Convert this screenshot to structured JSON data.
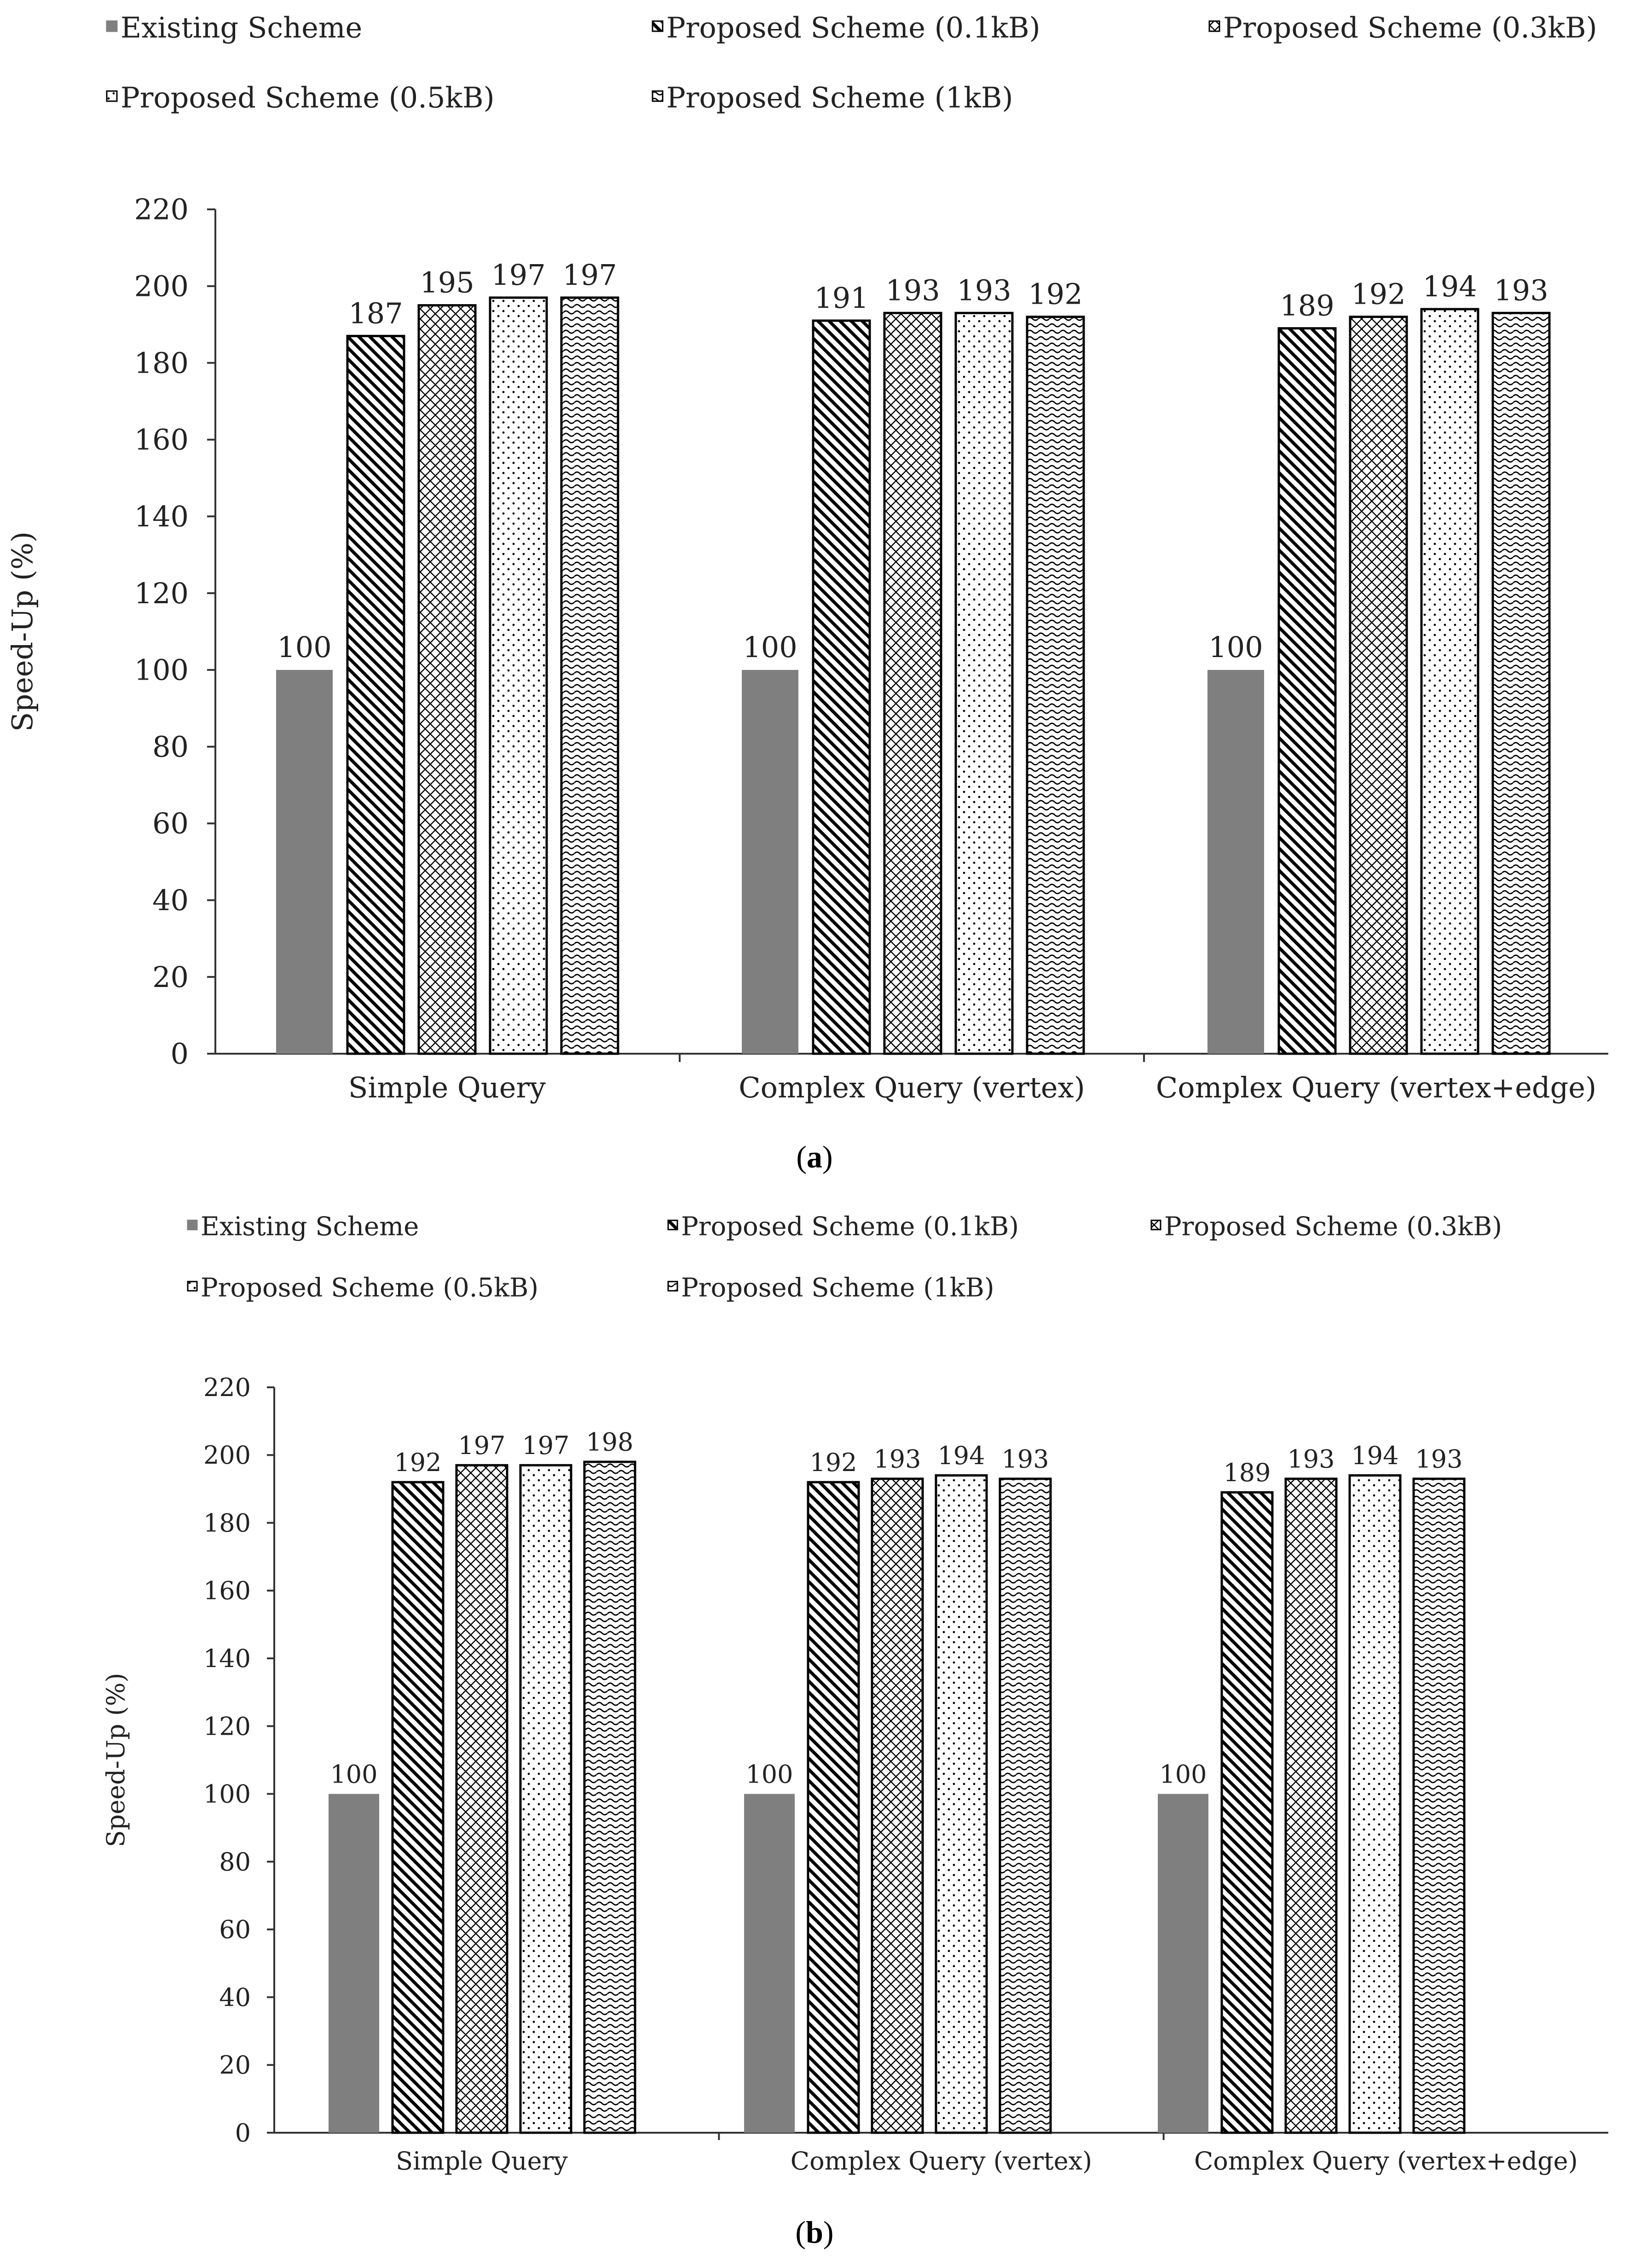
{
  "chart_data": [
    {
      "type": "bar",
      "panel": "a",
      "title": "",
      "xlabel": "",
      "ylabel": "Speed-Up (%)",
      "ylim": [
        0,
        220
      ],
      "yticks": [
        0,
        20,
        40,
        60,
        80,
        100,
        120,
        140,
        160,
        180,
        200,
        220
      ],
      "categories": [
        "Simple Query",
        "Complex Query (vertex)",
        "Complex Query (vertex+edge)"
      ],
      "series": [
        {
          "name": "Existing Scheme",
          "pattern": "solid",
          "values": [
            100,
            100,
            100
          ]
        },
        {
          "name": "Proposed Scheme (0.1kB)",
          "pattern": "diagonal",
          "values": [
            187,
            191,
            189
          ]
        },
        {
          "name": "Proposed Scheme (0.3kB)",
          "pattern": "crosshatch",
          "values": [
            195,
            193,
            192
          ]
        },
        {
          "name": "Proposed Scheme (0.5kB)",
          "pattern": "dots",
          "values": [
            197,
            193,
            194
          ]
        },
        {
          "name": "Proposed Scheme (1kB)",
          "pattern": "wave",
          "values": [
            197,
            192,
            193
          ]
        }
      ],
      "legend_position": "top",
      "caption": "a"
    },
    {
      "type": "bar",
      "panel": "b",
      "title": "",
      "xlabel": "",
      "ylabel": "Speed-Up (%)",
      "ylim": [
        0,
        220
      ],
      "yticks": [
        0,
        20,
        40,
        60,
        80,
        100,
        120,
        140,
        160,
        180,
        200,
        220
      ],
      "categories": [
        "Simple Query",
        "Complex Query (vertex)",
        "Complex Query (vertex+edge)"
      ],
      "series": [
        {
          "name": "Existing Scheme",
          "pattern": "solid",
          "values": [
            100,
            100,
            100
          ]
        },
        {
          "name": "Proposed Scheme (0.1kB)",
          "pattern": "diagonal",
          "values": [
            192,
            192,
            189
          ]
        },
        {
          "name": "Proposed Scheme (0.3kB)",
          "pattern": "crosshatch",
          "values": [
            197,
            193,
            193
          ]
        },
        {
          "name": "Proposed Scheme (0.5kB)",
          "pattern": "dots",
          "values": [
            197,
            194,
            194
          ]
        },
        {
          "name": "Proposed Scheme (1kB)",
          "pattern": "wave",
          "values": [
            198,
            193,
            193
          ]
        }
      ],
      "legend_position": "top",
      "caption": "b"
    }
  ],
  "colors": {
    "existing_fill": "#7f7f7f",
    "bar_stroke": "#000000",
    "axis": "#333333",
    "text": "#222222"
  }
}
